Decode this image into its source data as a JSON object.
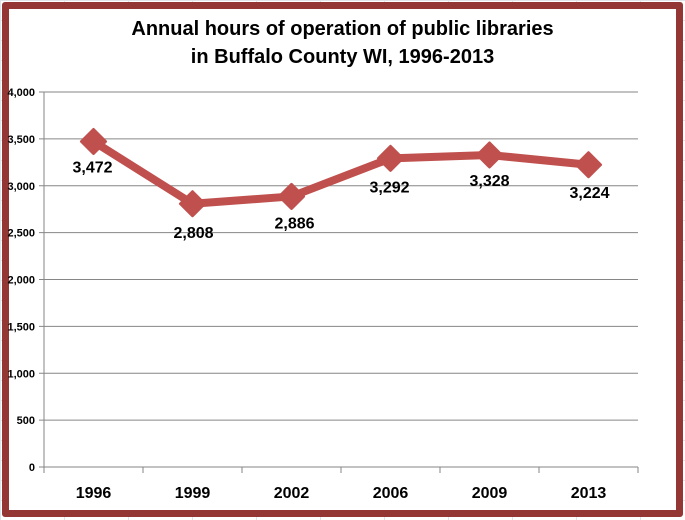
{
  "chart_data": {
    "type": "line",
    "title": "Annual hours of operation of public libraries in Buffalo County WI, 1996-2013",
    "title_lines": [
      "Annual hours of operation of public libraries",
      "in Buffalo County WI, 1996-2013"
    ],
    "categories": [
      "1996",
      "1999",
      "2002",
      "2006",
      "2009",
      "2013"
    ],
    "series": [
      {
        "name": "Annual hours of operation",
        "values": [
          3472,
          2808,
          2886,
          3292,
          3328,
          3224
        ],
        "color": "#c0504d"
      }
    ],
    "data_labels": [
      "3,472",
      "2,808",
      "2,886",
      "3,292",
      "3,328",
      "3,224"
    ],
    "xlabel": "",
    "ylabel": "",
    "ylim": [
      0,
      4000
    ],
    "yticks": [
      0,
      500,
      1000,
      1500,
      2000,
      2500,
      3000,
      3500,
      4000
    ],
    "ytick_labels": [
      "0",
      "500",
      "1,000",
      "1,500",
      "2,000",
      "2,500",
      "3,000",
      "3,500",
      "4,000"
    ],
    "grid": true,
    "legend": "none",
    "marker": "diamond"
  },
  "style": {
    "frame_color": "#943634",
    "line_color": "#c0504d",
    "grid_color": "#868686"
  }
}
